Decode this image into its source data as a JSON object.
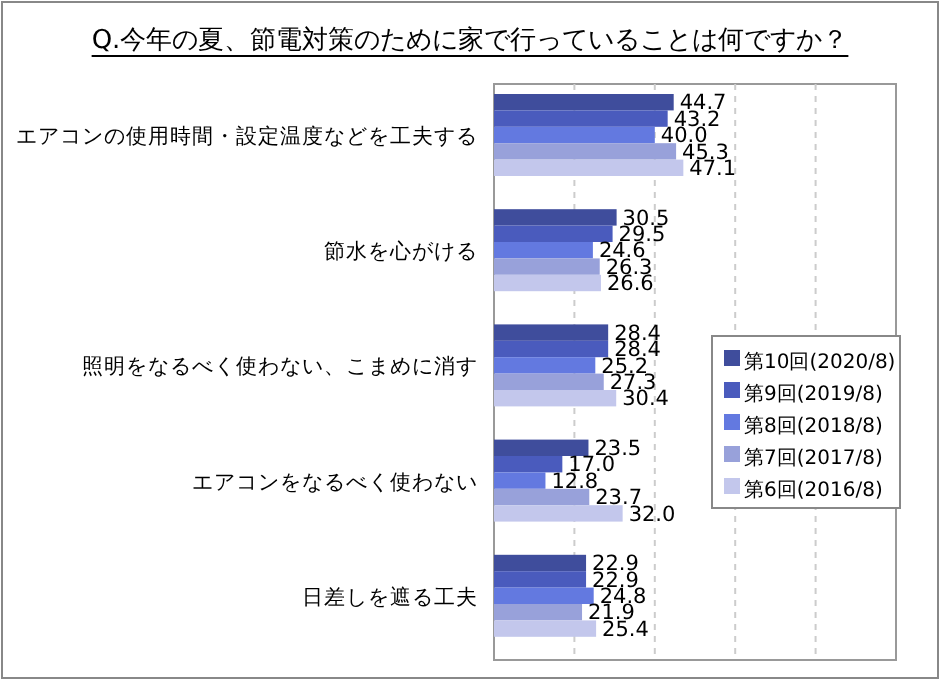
{
  "chart_data": {
    "type": "bar",
    "orientation": "horizontal",
    "title": "Q.今年の夏、節電対策のために家で行っていることは何ですか？",
    "categories": [
      "エアコンの使用時間・設定温度などを工夫する",
      "節水を心がける",
      "照明をなるべく使わない、こまめに消す",
      "エアコンをなるべく使わない",
      "日差しを遮る工夫"
    ],
    "series": [
      {
        "name": "第10回(2020/8)",
        "color": "#3f4d9c",
        "values": [
          44.7,
          30.5,
          28.4,
          23.5,
          22.9
        ],
        "value_labels": [
          "44.7",
          "30.5",
          "28.4",
          "23.5",
          "22.9"
        ]
      },
      {
        "name": "第9回(2019/8)",
        "color": "#4a5bbd",
        "values": [
          43.2,
          29.5,
          28.4,
          17,
          22.9
        ],
        "value_labels": [
          "43.2",
          "29.5",
          "28.4",
          "17.0",
          "22.9"
        ]
      },
      {
        "name": "第8回(2018/8)",
        "color": "#6379e0",
        "values": [
          40,
          24.6,
          25.2,
          12.8,
          24.8
        ],
        "value_labels": [
          "40.0",
          "24.6",
          "25.2",
          "12.8",
          "24.8"
        ]
      },
      {
        "name": "第7回(2017/8)",
        "color": "#98a1da",
        "values": [
          45.3,
          26.3,
          27.3,
          23.7,
          21.9
        ],
        "value_labels": [
          "45.3",
          "26.3",
          "27.3",
          "23.7",
          "21.9"
        ]
      },
      {
        "name": "第6回(2016/8)",
        "color": "#c3c7ec",
        "values": [
          47.1,
          26.6,
          30.4,
          32,
          25.4
        ],
        "value_labels": [
          "47.1",
          "26.6",
          "30.4",
          "32.0",
          "25.4"
        ]
      }
    ],
    "xlim": [
      0,
      100
    ],
    "xticks": [
      {
        "value": 0,
        "label": null
      },
      {
        "value": 20,
        "label": null
      },
      {
        "value": 40,
        "label": null
      },
      {
        "value": 60,
        "label": null
      },
      {
        "value": 80,
        "label": null
      },
      {
        "value": 100,
        "label": null
      }
    ],
    "tick_labels": "y",
    "grid": "x",
    "legend": "right"
  }
}
